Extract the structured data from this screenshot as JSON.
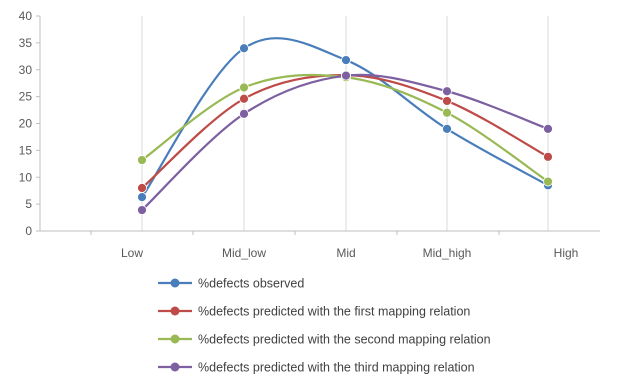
{
  "chart_data": {
    "type": "line",
    "title": "",
    "xlabel": "",
    "ylabel": "",
    "categories": [
      "Low",
      "Mid_low",
      "Mid",
      "Mid_high",
      "High"
    ],
    "ylim": [
      0,
      40
    ],
    "yticks": [
      0,
      5,
      10,
      15,
      20,
      25,
      30,
      35,
      40
    ],
    "grid": "vertical",
    "smooth": true,
    "legend_position": "bottom",
    "series": [
      {
        "name": "%defects observed",
        "color": "#4a7ebb",
        "values": [
          6.3,
          34.0,
          31.8,
          19.0,
          8.5
        ]
      },
      {
        "name": "%defects predicted with the first mapping relation",
        "color": "#be4b48",
        "values": [
          8.0,
          24.6,
          29.0,
          24.2,
          13.8
        ]
      },
      {
        "name": "%defects predicted with the second mapping relation",
        "color": "#98b954",
        "values": [
          13.2,
          26.7,
          28.6,
          22.0,
          9.2
        ]
      },
      {
        "name": "%defects predicted with the third mapping relation",
        "color": "#7d60a0",
        "values": [
          3.9,
          21.8,
          28.9,
          26.0,
          19.0
        ]
      }
    ]
  }
}
